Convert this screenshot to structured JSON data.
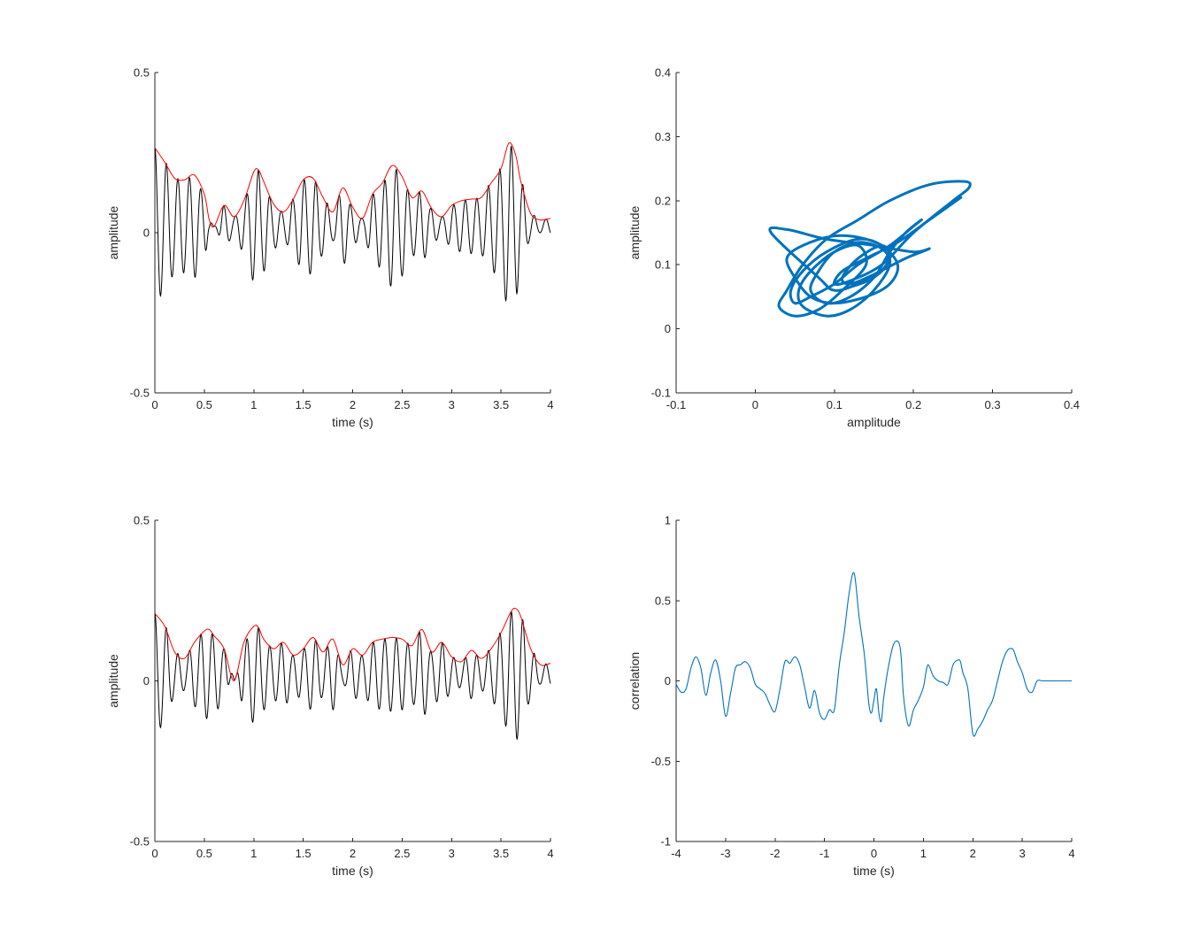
{
  "chart_data": [
    {
      "id": "tl",
      "type": "line",
      "title": "",
      "xlabel": "time (s)",
      "ylabel": "amplitude",
      "xlim": [
        0,
        4
      ],
      "ylim": [
        -0.5,
        0.5
      ],
      "xticks": [
        "0",
        "0.5",
        "1",
        "1.5",
        "2",
        "2.5",
        "3",
        "3.5",
        "4"
      ],
      "yticks": [
        "-0.5",
        "0",
        "0.5"
      ],
      "grid": false,
      "series": [
        {
          "role": "signal",
          "color": "#000000",
          "freq_hz": 8.6,
          "dc_offset": 0.02,
          "description_peaks_from_envelope": true
        },
        {
          "role": "envelope",
          "color": "#ff0000",
          "x": [
            0.0,
            0.1,
            0.2,
            0.3,
            0.4,
            0.5,
            0.55,
            0.6,
            0.7,
            0.8,
            0.9,
            1.0,
            1.05,
            1.1,
            1.2,
            1.3,
            1.4,
            1.5,
            1.6,
            1.7,
            1.8,
            1.9,
            2.0,
            2.1,
            2.2,
            2.3,
            2.4,
            2.5,
            2.6,
            2.7,
            2.8,
            2.9,
            3.0,
            3.1,
            3.2,
            3.3,
            3.4,
            3.5,
            3.58,
            3.65,
            3.7,
            3.8,
            3.9,
            4.0
          ],
          "y": [
            0.265,
            0.22,
            0.17,
            0.165,
            0.18,
            0.12,
            0.04,
            0.02,
            0.085,
            0.05,
            0.1,
            0.19,
            0.195,
            0.16,
            0.09,
            0.065,
            0.105,
            0.165,
            0.17,
            0.11,
            0.065,
            0.14,
            0.08,
            0.045,
            0.12,
            0.155,
            0.21,
            0.175,
            0.11,
            0.13,
            0.075,
            0.05,
            0.085,
            0.1,
            0.105,
            0.11,
            0.155,
            0.2,
            0.28,
            0.24,
            0.16,
            0.06,
            0.04,
            0.045
          ]
        }
      ]
    },
    {
      "id": "tr",
      "type": "line",
      "title": "",
      "xlabel": "amplitude",
      "ylabel": "amplitude",
      "xlim": [
        -0.1,
        0.4
      ],
      "ylim": [
        -0.1,
        0.4
      ],
      "xticks": [
        "-0.1",
        "0",
        "0.1",
        "0.2",
        "0.3",
        "0.4"
      ],
      "yticks": [
        "-0.1",
        "0",
        "0.1",
        "0.2",
        "0.3",
        "0.4"
      ],
      "grid": false,
      "series": [
        {
          "role": "phase-trajectory",
          "color": "#0072bd",
          "x": [
            0.26,
            0.22,
            0.18,
            0.14,
            0.11,
            0.1,
            0.12,
            0.16,
            0.2,
            0.25,
            0.27,
            0.265,
            0.22,
            0.17,
            0.13,
            0.09,
            0.06,
            0.04,
            0.03,
            0.05,
            0.08,
            0.11,
            0.14,
            0.13,
            0.1,
            0.07,
            0.055,
            0.06,
            0.09,
            0.12,
            0.15,
            0.17,
            0.16,
            0.13,
            0.1,
            0.08,
            0.07,
            0.09,
            0.12,
            0.15,
            0.17,
            0.19,
            0.21,
            0.2,
            0.17,
            0.13,
            0.1,
            0.07,
            0.05,
            0.045,
            0.06,
            0.09,
            0.13,
            0.16,
            0.18,
            0.17,
            0.14,
            0.1,
            0.07,
            0.05,
            0.04,
            0.06,
            0.1,
            0.14,
            0.17,
            0.16,
            0.13,
            0.1,
            0.08,
            0.02,
            0.04,
            0.09,
            0.15,
            0.2,
            0.22,
            0.19,
            0.15,
            0.12,
            0.11,
            0.13,
            0.16,
            0.17,
            0.15,
            0.12
          ],
          "y": [
            0.205,
            0.17,
            0.135,
            0.11,
            0.09,
            0.07,
            0.075,
            0.1,
            0.15,
            0.2,
            0.22,
            0.23,
            0.225,
            0.2,
            0.17,
            0.14,
            0.1,
            0.06,
            0.035,
            0.02,
            0.03,
            0.06,
            0.1,
            0.13,
            0.12,
            0.09,
            0.06,
            0.035,
            0.02,
            0.03,
            0.06,
            0.1,
            0.125,
            0.135,
            0.12,
            0.09,
            0.06,
            0.04,
            0.05,
            0.08,
            0.12,
            0.15,
            0.17,
            0.16,
            0.13,
            0.1,
            0.07,
            0.05,
            0.04,
            0.06,
            0.09,
            0.12,
            0.14,
            0.13,
            0.1,
            0.07,
            0.05,
            0.04,
            0.05,
            0.08,
            0.11,
            0.13,
            0.145,
            0.14,
            0.12,
            0.09,
            0.07,
            0.06,
            0.08,
            0.15,
            0.155,
            0.14,
            0.13,
            0.12,
            0.125,
            0.11,
            0.085,
            0.07,
            0.08,
            0.11,
            0.13,
            0.11,
            0.08,
            0.065
          ]
        }
      ]
    },
    {
      "id": "bl",
      "type": "line",
      "title": "",
      "xlabel": "time (s)",
      "ylabel": "amplitude",
      "xlim": [
        0,
        4
      ],
      "ylim": [
        -0.5,
        0.5
      ],
      "xticks": [
        "0",
        "0.5",
        "1",
        "1.5",
        "2",
        "2.5",
        "3",
        "3.5",
        "4"
      ],
      "yticks": [
        "-0.5",
        "0",
        "0.5"
      ],
      "grid": false,
      "series": [
        {
          "role": "signal",
          "color": "#000000",
          "freq_hz": 8.6,
          "dc_offset": 0.02,
          "description_peaks_from_envelope": true
        },
        {
          "role": "envelope",
          "color": "#ff0000",
          "x": [
            0.0,
            0.1,
            0.2,
            0.3,
            0.4,
            0.5,
            0.55,
            0.6,
            0.7,
            0.8,
            0.9,
            1.0,
            1.05,
            1.1,
            1.2,
            1.3,
            1.4,
            1.5,
            1.6,
            1.7,
            1.8,
            1.9,
            2.0,
            2.1,
            2.2,
            2.3,
            2.4,
            2.5,
            2.6,
            2.7,
            2.8,
            2.9,
            3.0,
            3.1,
            3.2,
            3.3,
            3.4,
            3.5,
            3.6,
            3.65,
            3.7,
            3.8,
            3.9,
            4.0
          ],
          "y": [
            0.21,
            0.17,
            0.09,
            0.07,
            0.12,
            0.155,
            0.16,
            0.14,
            0.1,
            0.0,
            0.12,
            0.17,
            0.165,
            0.13,
            0.1,
            0.12,
            0.08,
            0.1,
            0.135,
            0.09,
            0.13,
            0.05,
            0.1,
            0.08,
            0.12,
            0.13,
            0.135,
            0.13,
            0.11,
            0.16,
            0.09,
            0.12,
            0.075,
            0.06,
            0.095,
            0.07,
            0.1,
            0.15,
            0.215,
            0.225,
            0.2,
            0.1,
            0.05,
            0.055
          ]
        }
      ]
    },
    {
      "id": "br",
      "type": "line",
      "title": "",
      "xlabel": "time (s)",
      "ylabel": "correlation",
      "xlim": [
        -4,
        4
      ],
      "ylim": [
        -1,
        1
      ],
      "xticks": [
        "-4",
        "-3",
        "-2",
        "-1",
        "0",
        "1",
        "2",
        "3",
        "4"
      ],
      "yticks": [
        "-1",
        "-0.5",
        "0",
        "0.5",
        "1"
      ],
      "grid": false,
      "series": [
        {
          "role": "cross-correlation",
          "color": "#0072bd",
          "x": [
            -4.0,
            -3.9,
            -3.8,
            -3.7,
            -3.6,
            -3.5,
            -3.4,
            -3.3,
            -3.2,
            -3.1,
            -3.0,
            -2.9,
            -2.8,
            -2.7,
            -2.6,
            -2.5,
            -2.4,
            -2.3,
            -2.2,
            -2.1,
            -2.0,
            -1.9,
            -1.8,
            -1.7,
            -1.6,
            -1.5,
            -1.4,
            -1.3,
            -1.2,
            -1.1,
            -1.0,
            -0.9,
            -0.8,
            -0.7,
            -0.6,
            -0.5,
            -0.4,
            -0.3,
            -0.2,
            -0.15,
            -0.1,
            -0.05,
            0.0,
            0.05,
            0.1,
            0.15,
            0.2,
            0.3,
            0.4,
            0.5,
            0.55,
            0.6,
            0.7,
            0.8,
            0.9,
            1.0,
            1.05,
            1.1,
            1.2,
            1.3,
            1.4,
            1.5,
            1.6,
            1.7,
            1.75,
            1.8,
            1.9,
            2.0,
            2.1,
            2.2,
            2.3,
            2.4,
            2.5,
            2.6,
            2.7,
            2.8,
            2.85,
            2.9,
            3.0,
            3.1,
            3.2,
            3.3,
            3.4,
            3.5,
            3.6,
            3.7,
            3.8,
            3.9,
            4.0
          ],
          "y": [
            -0.02,
            -0.07,
            -0.05,
            0.08,
            0.15,
            0.08,
            -0.09,
            0.05,
            0.13,
            0.0,
            -0.22,
            -0.08,
            0.08,
            0.1,
            0.12,
            0.08,
            -0.02,
            -0.05,
            -0.08,
            -0.15,
            -0.19,
            -0.05,
            0.12,
            0.11,
            0.15,
            0.1,
            -0.04,
            -0.17,
            -0.06,
            -0.2,
            -0.24,
            -0.18,
            -0.18,
            0.1,
            0.3,
            0.55,
            0.67,
            0.4,
            0.18,
            0.02,
            -0.15,
            -0.2,
            -0.12,
            -0.05,
            -0.2,
            -0.25,
            -0.1,
            0.1,
            0.23,
            0.24,
            0.15,
            -0.1,
            -0.28,
            -0.18,
            -0.12,
            -0.04,
            0.05,
            0.1,
            0.03,
            0.0,
            -0.01,
            -0.02,
            0.1,
            0.13,
            0.12,
            0.05,
            -0.05,
            -0.33,
            -0.3,
            -0.25,
            -0.18,
            -0.12,
            0.0,
            0.12,
            0.19,
            0.2,
            0.17,
            0.12,
            0.05,
            -0.05,
            -0.07,
            0.0,
            0.0,
            0.0,
            0.0,
            0.0,
            0.0,
            0.0,
            0.0
          ]
        }
      ]
    }
  ]
}
